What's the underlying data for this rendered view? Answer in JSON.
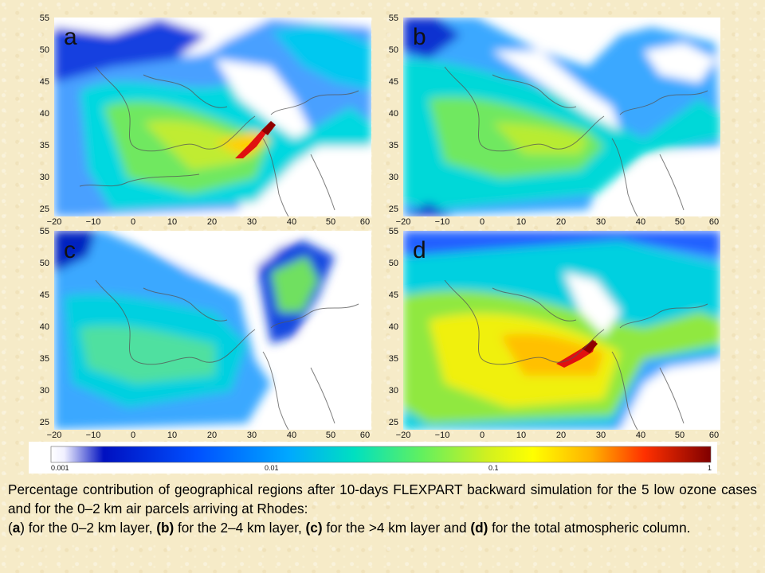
{
  "panels": [
    {
      "id": "a",
      "label": "a",
      "y_ticks": [
        "55",
        "50",
        "45",
        "40",
        "35",
        "30",
        "25"
      ],
      "x_ticks": [
        "−20",
        "−10",
        "0",
        "10",
        "20",
        "30",
        "40",
        "50",
        "60"
      ]
    },
    {
      "id": "b",
      "label": "b",
      "y_ticks": [
        "55",
        "50",
        "45",
        "40",
        "35",
        "30",
        "25"
      ],
      "x_ticks": [
        "−20",
        "−10",
        "0",
        "10",
        "20",
        "30",
        "40",
        "50",
        "60"
      ]
    },
    {
      "id": "c",
      "label": "c",
      "y_ticks": [
        "55",
        "50",
        "45",
        "40",
        "35",
        "30",
        "25"
      ],
      "x_ticks": [
        "−20",
        "−10",
        "0",
        "10",
        "20",
        "30",
        "40",
        "50",
        "60"
      ]
    },
    {
      "id": "d",
      "label": "d",
      "y_ticks": [
        "55",
        "50",
        "45",
        "40",
        "35",
        "30",
        "25"
      ],
      "x_ticks": [
        "−20",
        "−10",
        "0",
        "10",
        "20",
        "30",
        "40",
        "50",
        "60"
      ]
    }
  ],
  "colorbar": {
    "ticks": [
      "0.001",
      "0.01",
      "0.1",
      "1"
    ],
    "colors": [
      "#ffffff",
      "#0000d0",
      "#0060ff",
      "#00c8ff",
      "#00e8a0",
      "#90f040",
      "#ffff00",
      "#ffa000",
      "#ff2000",
      "#900000"
    ]
  },
  "caption": {
    "line1": "Percentage contribution of geographical regions after 10-days FLEXPART backward simulation for the 5 low ozone cases and for the 0–2 km air parcels arriving at Rhodes:",
    "p2_a_open": "(",
    "p2_a_letter": "a",
    "p2_a_text": ") for the 0–2 km layer, ",
    "p2_b": "(b)",
    "p2_b_text": " for the 2–4 km layer, ",
    "p2_c": "(c)",
    "p2_c_text": " for the >4 km layer and ",
    "p2_d": "(d)",
    "p2_d_text": " for the total atmospheric column."
  }
}
